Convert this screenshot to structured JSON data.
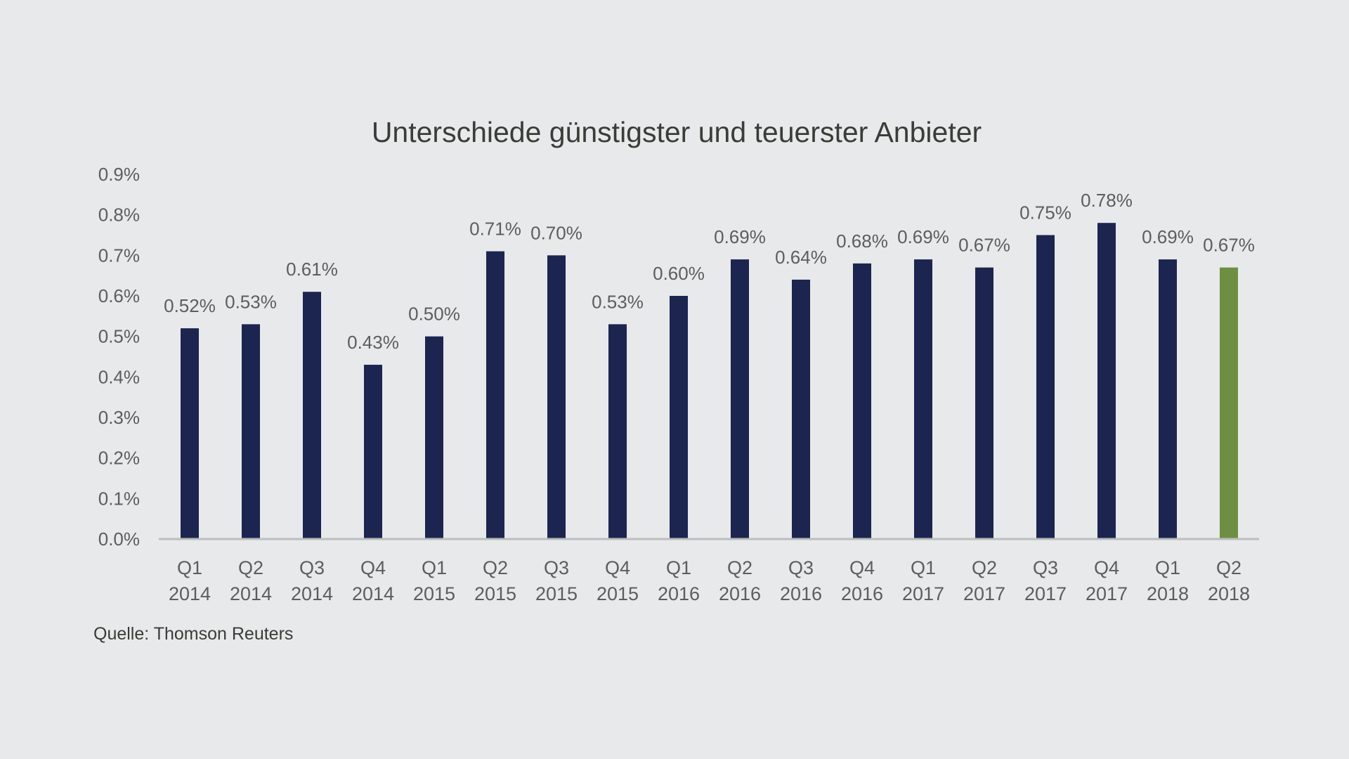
{
  "chart_data": {
    "type": "bar",
    "title": "Unterschiede günstigster und teuerster Anbieter",
    "xlabel": "",
    "ylabel": "",
    "ylim": [
      0,
      0.9
    ],
    "yticks": [
      0.0,
      0.1,
      0.2,
      0.3,
      0.4,
      0.5,
      0.6,
      0.7,
      0.8,
      0.9
    ],
    "ytick_labels": [
      "0.0%",
      "0.1%",
      "0.2%",
      "0.3%",
      "0.4%",
      "0.5%",
      "0.6%",
      "0.7%",
      "0.8%",
      "0.9%"
    ],
    "categories": [
      [
        "Q1",
        "2014"
      ],
      [
        "Q2",
        "2014"
      ],
      [
        "Q3",
        "2014"
      ],
      [
        "Q4",
        "2014"
      ],
      [
        "Q1",
        "2015"
      ],
      [
        "Q2",
        "2015"
      ],
      [
        "Q3",
        "2015"
      ],
      [
        "Q4",
        "2015"
      ],
      [
        "Q1",
        "2016"
      ],
      [
        "Q2",
        "2016"
      ],
      [
        "Q3",
        "2016"
      ],
      [
        "Q4",
        "2016"
      ],
      [
        "Q1",
        "2017"
      ],
      [
        "Q2",
        "2017"
      ],
      [
        "Q3",
        "2017"
      ],
      [
        "Q4",
        "2017"
      ],
      [
        "Q1",
        "2018"
      ],
      [
        "Q2",
        "2018"
      ]
    ],
    "values": [
      0.52,
      0.53,
      0.61,
      0.43,
      0.5,
      0.71,
      0.7,
      0.53,
      0.6,
      0.69,
      0.64,
      0.68,
      0.69,
      0.67,
      0.75,
      0.78,
      0.69,
      0.67
    ],
    "value_labels": [
      "0.52%",
      "0.53%",
      "0.61%",
      "0.43%",
      "0.50%",
      "0.71%",
      "0.70%",
      "0.53%",
      "0.60%",
      "0.69%",
      "0.64%",
      "0.68%",
      "0.69%",
      "0.67%",
      "0.75%",
      "0.78%",
      "0.69%",
      "0.67%"
    ],
    "highlight_index": 17,
    "colors": {
      "bar": "#1c2550",
      "highlight": "#6e8f43",
      "axis": "#bdbdbd"
    },
    "grid": false,
    "legend": "none"
  },
  "source": "Quelle: Thomson Reuters"
}
